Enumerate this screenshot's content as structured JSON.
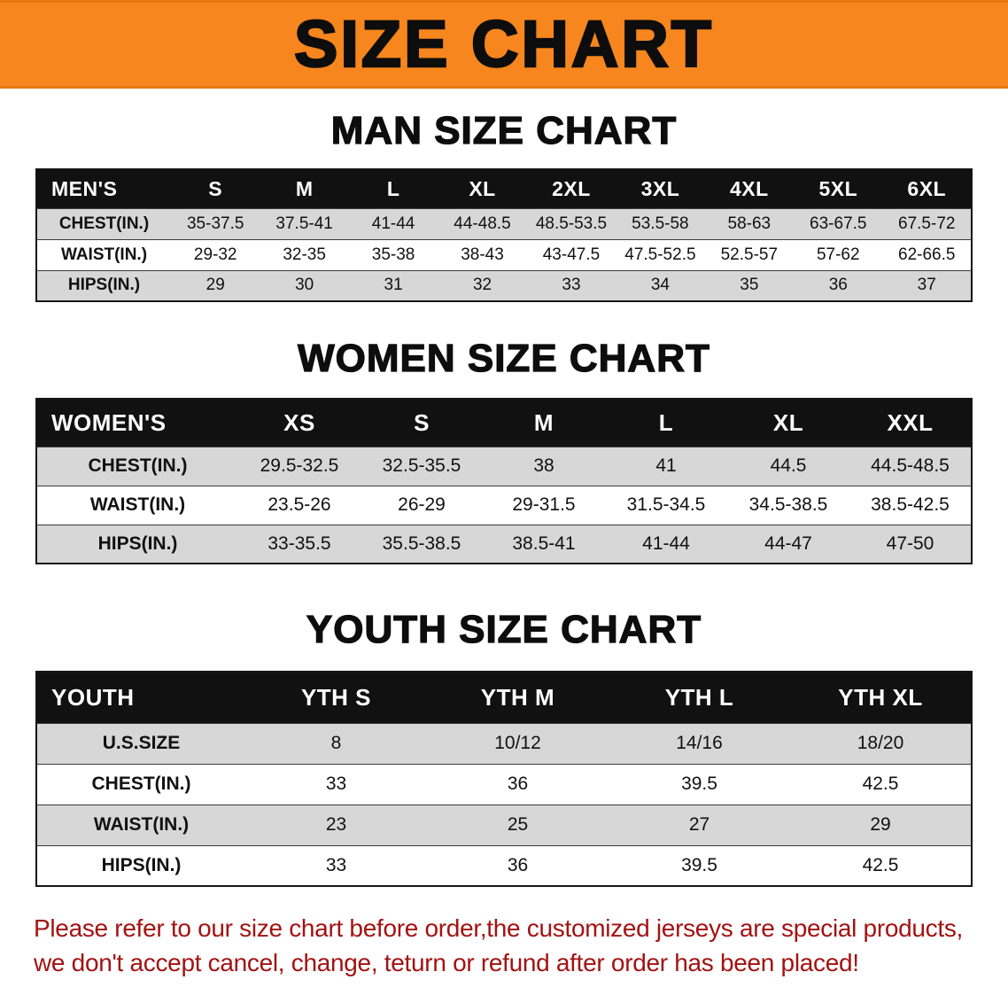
{
  "banner": {
    "title": "SIZE CHART"
  },
  "colors": {
    "banner_bg": "#F6861D",
    "table_header_bg": "#111111",
    "row_gray": "#D7D7D7",
    "disclaimer_red": "#A31212"
  },
  "sections": [
    {
      "heading": "MAN SIZE CHART",
      "table": {
        "header": [
          "MEN'S",
          "S",
          "M",
          "L",
          "XL",
          "2XL",
          "3XL",
          "4XL",
          "5XL",
          "6XL"
        ],
        "rows": [
          [
            "CHEST(IN.)",
            "35-37.5",
            "37.5-41",
            "41-44",
            "44-48.5",
            "48.5-53.5",
            "53.5-58",
            "58-63",
            "63-67.5",
            "67.5-72"
          ],
          [
            "WAIST(IN.)",
            "29-32",
            "32-35",
            "35-38",
            "38-43",
            "43-47.5",
            "47.5-52.5",
            "52.5-57",
            "57-62",
            "62-66.5"
          ],
          [
            "HIPS(IN.)",
            "29",
            "30",
            "31",
            "32",
            "33",
            "34",
            "35",
            "36",
            "37"
          ]
        ]
      }
    },
    {
      "heading": "WOMEN SIZE CHART",
      "table": {
        "header": [
          "WOMEN'S",
          "XS",
          "S",
          "M",
          "L",
          "XL",
          "XXL"
        ],
        "rows": [
          [
            "CHEST(IN.)",
            "29.5-32.5",
            "32.5-35.5",
            "38",
            "41",
            "44.5",
            "44.5-48.5"
          ],
          [
            "WAIST(IN.)",
            "23.5-26",
            "26-29",
            "29-31.5",
            "31.5-34.5",
            "34.5-38.5",
            "38.5-42.5"
          ],
          [
            "HIPS(IN.)",
            "33-35.5",
            "35.5-38.5",
            "38.5-41",
            "41-44",
            "44-47",
            "47-50"
          ]
        ]
      }
    },
    {
      "heading": "YOUTH SIZE CHART",
      "table": {
        "header": [
          "YOUTH",
          "YTH S",
          "YTH M",
          "YTH L",
          "YTH XL"
        ],
        "rows": [
          [
            "U.S.SIZE",
            "8",
            "10/12",
            "14/16",
            "18/20"
          ],
          [
            "CHEST(IN.)",
            "33",
            "36",
            "39.5",
            "42.5"
          ],
          [
            "WAIST(IN.)",
            "23",
            "25",
            "27",
            "29"
          ],
          [
            "HIPS(IN.)",
            "33",
            "36",
            "39.5",
            "42.5"
          ]
        ]
      }
    }
  ],
  "disclaimer": {
    "line1": "Please refer to our size chart before order,the customized jerseys are special products,",
    "line2": "we don't accept cancel, change, teturn or refund after order has been placed!"
  }
}
